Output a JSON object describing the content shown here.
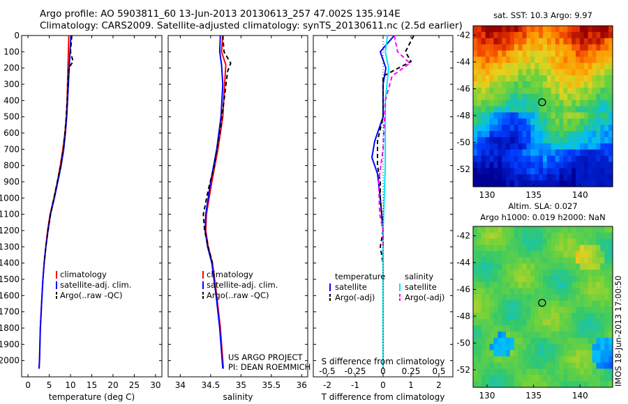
{
  "header": {
    "title_line1": "Argo profile: AO 5903811_60 13-Jun-2013 20130613_257 47.002S 135.914E",
    "title_line2": "Climatology: CARS2009. Satellite-adjusted climatology: synTS_20130611.nc (2.5d earlier)"
  },
  "colors": {
    "climatology": "#ff0000",
    "satellite": "#0000ff",
    "argo": "#000000",
    "salinity_satellite": "#00e5ff",
    "salinity_argo": "#ff00ff"
  },
  "chart_data": [
    {
      "type": "line",
      "panel": "temperature",
      "xlabel": "temperature (deg C)",
      "xlim": [
        -1.5,
        31.5
      ],
      "xticks": [
        0,
        5,
        10,
        15,
        20,
        25,
        30
      ],
      "ylim": [
        2100,
        0
      ],
      "yticks": [
        0,
        100,
        200,
        300,
        400,
        500,
        600,
        700,
        800,
        900,
        1000,
        1100,
        1200,
        1300,
        1400,
        1500,
        1600,
        1700,
        1800,
        1900,
        2000
      ],
      "legend": [
        "climatology",
        "satellite-adj. clim.",
        "Argo(..raw -QC)"
      ],
      "legend_position": "lower-right",
      "series": [
        {
          "name": "climatology",
          "style": "solid",
          "color": "#ff0000",
          "points": [
            [
              9.6,
              0
            ],
            [
              9.5,
              100
            ],
            [
              9.4,
              200
            ],
            [
              9.3,
              300
            ],
            [
              9.2,
              400
            ],
            [
              9.0,
              500
            ],
            [
              8.7,
              600
            ],
            [
              8.2,
              700
            ],
            [
              7.6,
              800
            ],
            [
              6.9,
              900
            ],
            [
              6.1,
              1000
            ],
            [
              5.2,
              1100
            ],
            [
              4.6,
              1200
            ],
            [
              4.2,
              1300
            ],
            [
              3.8,
              1400
            ],
            [
              3.5,
              1500
            ],
            [
              3.3,
              1600
            ],
            [
              3.1,
              1700
            ],
            [
              2.9,
              1800
            ],
            [
              2.8,
              1900
            ],
            [
              2.7,
              2000
            ],
            [
              2.6,
              2050
            ]
          ]
        },
        {
          "name": "satellite-adj. clim.",
          "style": "solid",
          "color": "#0000ff",
          "points": [
            [
              10.1,
              0
            ],
            [
              9.9,
              100
            ],
            [
              9.7,
              200
            ],
            [
              9.5,
              300
            ],
            [
              9.3,
              400
            ],
            [
              9.1,
              500
            ],
            [
              8.8,
              600
            ],
            [
              8.4,
              700
            ],
            [
              7.8,
              800
            ],
            [
              7.0,
              900
            ],
            [
              6.2,
              1000
            ],
            [
              5.3,
              1100
            ],
            [
              4.7,
              1200
            ],
            [
              4.2,
              1300
            ],
            [
              3.8,
              1400
            ],
            [
              3.5,
              1500
            ],
            [
              3.3,
              1600
            ],
            [
              3.1,
              1700
            ],
            [
              2.9,
              1800
            ],
            [
              2.8,
              1900
            ],
            [
              2.7,
              2000
            ],
            [
              2.6,
              2050
            ]
          ]
        },
        {
          "name": "Argo(..raw -QC)",
          "style": "dashed",
          "color": "#000000",
          "points": [
            [
              10.3,
              0
            ],
            [
              10.0,
              100
            ],
            [
              10.6,
              160
            ],
            [
              9.6,
              200
            ],
            [
              9.4,
              300
            ],
            [
              9.2,
              400
            ],
            [
              9.0,
              500
            ],
            [
              8.7,
              600
            ],
            [
              8.3,
              700
            ],
            [
              7.7,
              800
            ],
            [
              6.9,
              900
            ],
            [
              6.1,
              1000
            ],
            [
              5.3,
              1100
            ],
            [
              4.7,
              1200
            ],
            [
              4.2,
              1300
            ],
            [
              3.8,
              1400
            ]
          ]
        }
      ]
    },
    {
      "type": "line",
      "panel": "salinity",
      "xlabel": "salinity",
      "xlim": [
        33.8,
        36.1
      ],
      "xticks": [
        34,
        34.5,
        35,
        35.5,
        36
      ],
      "ylim": [
        2100,
        0
      ],
      "legend": [
        "climatology",
        "satellite-adj. clim.",
        "Argo(..raw -QC)"
      ],
      "legend_position": "lower-right",
      "annotation": [
        "US ARGO PROJECT",
        "PI: DEAN ROEMMICH"
      ],
      "series": [
        {
          "name": "climatology",
          "style": "solid",
          "color": "#ff0000",
          "points": [
            [
              34.7,
              0
            ],
            [
              34.68,
              100
            ],
            [
              34.75,
              180
            ],
            [
              34.73,
              300
            ],
            [
              34.7,
              500
            ],
            [
              34.62,
              700
            ],
            [
              34.52,
              900
            ],
            [
              34.43,
              1100
            ],
            [
              34.42,
              1200
            ],
            [
              34.46,
              1300
            ],
            [
              34.53,
              1400
            ],
            [
              34.6,
              1600
            ],
            [
              34.66,
              1800
            ],
            [
              34.7,
              2000
            ],
            [
              34.71,
              2050
            ]
          ]
        },
        {
          "name": "satellite-adj. clim.",
          "style": "solid",
          "color": "#0000ff",
          "points": [
            [
              34.66,
              0
            ],
            [
              34.65,
              100
            ],
            [
              34.68,
              180
            ],
            [
              34.7,
              300
            ],
            [
              34.67,
              500
            ],
            [
              34.6,
              700
            ],
            [
              34.5,
              900
            ],
            [
              34.42,
              1100
            ],
            [
              34.41,
              1200
            ],
            [
              34.45,
              1300
            ],
            [
              34.52,
              1400
            ],
            [
              34.59,
              1600
            ],
            [
              34.65,
              1800
            ],
            [
              34.69,
              2000
            ],
            [
              34.7,
              2050
            ]
          ]
        },
        {
          "name": "Argo(..raw -QC)",
          "style": "dashed",
          "color": "#000000",
          "points": [
            [
              34.7,
              0
            ],
            [
              34.72,
              100
            ],
            [
              34.83,
              170
            ],
            [
              34.78,
              220
            ],
            [
              34.72,
              400
            ],
            [
              34.65,
              600
            ],
            [
              34.56,
              800
            ],
            [
              34.46,
              950
            ],
            [
              34.38,
              1100
            ],
            [
              34.4,
              1200
            ],
            [
              34.46,
              1300
            ],
            [
              34.53,
              1400
            ]
          ]
        }
      ]
    },
    {
      "type": "line",
      "panel": "difference",
      "xlabel": "T difference from climatology",
      "xlabel_top": "S difference from climatology",
      "xlim": [
        -2.5,
        2.5
      ],
      "xticks": [
        -2,
        -1,
        0,
        1,
        2
      ],
      "xticks_top": [
        -0.5,
        -0.25,
        0,
        0.25,
        0.5
      ],
      "ylim": [
        2100,
        0
      ],
      "legend_titles": [
        "temperature",
        "salinity"
      ],
      "legend": [
        "satellite",
        "Argo(-adj)",
        "satellite",
        "Argo(-adj)"
      ],
      "legend_position": "lower-center",
      "series": [
        {
          "name": "satellite",
          "group": "temperature",
          "style": "solid",
          "color": "#0000ff",
          "points": [
            [
              0.4,
              0
            ],
            [
              -0.1,
              100
            ],
            [
              0.1,
              200
            ],
            [
              0.0,
              300
            ],
            [
              0.0,
              500
            ],
            [
              -0.3,
              650
            ],
            [
              -0.4,
              750
            ],
            [
              -0.2,
              850
            ],
            [
              -0.1,
              1000
            ],
            [
              0.0,
              1200
            ],
            [
              0.0,
              2050
            ]
          ]
        },
        {
          "name": "Argo(-adj)",
          "group": "temperature",
          "style": "dashed",
          "color": "#000000",
          "points": [
            [
              1.1,
              0
            ],
            [
              0.8,
              100
            ],
            [
              1.0,
              160
            ],
            [
              0.0,
              250
            ],
            [
              0.0,
              500
            ],
            [
              -0.2,
              650
            ],
            [
              -0.2,
              800
            ],
            [
              -0.1,
              900
            ],
            [
              -0.1,
              1000
            ],
            [
              0.0,
              1200
            ],
            [
              -0.1,
              1300
            ],
            [
              0.0,
              1400
            ]
          ]
        },
        {
          "name": "satellite",
          "group": "salinity",
          "style": "solid",
          "color": "#00e5ff",
          "points": [
            [
              0.04,
              0
            ],
            [
              0.02,
              100
            ],
            [
              0.05,
              200
            ],
            [
              0.02,
              400
            ],
            [
              0.02,
              600
            ],
            [
              0.02,
              800
            ],
            [
              0.01,
              1000
            ],
            [
              0.0,
              1200
            ],
            [
              0.0,
              1500
            ],
            [
              0.0,
              2050
            ]
          ]
        },
        {
          "name": "Argo(-adj)",
          "group": "salinity",
          "style": "dashed",
          "color": "#ff00ff",
          "points": [
            [
              0.1,
              0
            ],
            [
              0.13,
              100
            ],
            [
              0.24,
              170
            ],
            [
              0.08,
              250
            ],
            [
              0.02,
              400
            ],
            [
              0.0,
              700
            ],
            [
              -0.04,
              900
            ],
            [
              -0.03,
              1100
            ],
            [
              0.0,
              1200
            ],
            [
              0.0,
              1300
            ]
          ]
        }
      ]
    },
    {
      "type": "heatmap",
      "panel": "sst-map",
      "title": "sat. SST: 10.3 Argo: 9.97",
      "xlim": [
        128.5,
        143.5
      ],
      "xticks": [
        130,
        135,
        140
      ],
      "ylim": [
        -53.3,
        -41.3
      ],
      "yticks": [
        -42,
        -44,
        -46,
        -48,
        -50,
        -52
      ],
      "marker": {
        "lon": 135.914,
        "lat": -47.002
      }
    },
    {
      "type": "heatmap",
      "panel": "sla-map",
      "title_lines": [
        "Altim. SLA: 0.027",
        "Argo h1000: 0.019 h2000: NaN"
      ],
      "xlim": [
        128.5,
        143.5
      ],
      "xticks": [
        130,
        135,
        140
      ],
      "ylim": [
        -53.3,
        -41.3
      ],
      "yticks": [
        -42,
        -44,
        -46,
        -48,
        -50,
        -52
      ],
      "marker": {
        "lon": 135.914,
        "lat": -47.002
      }
    }
  ],
  "footer": {
    "stamp": "IMOS 18-Jun-2013 17:00:50"
  }
}
